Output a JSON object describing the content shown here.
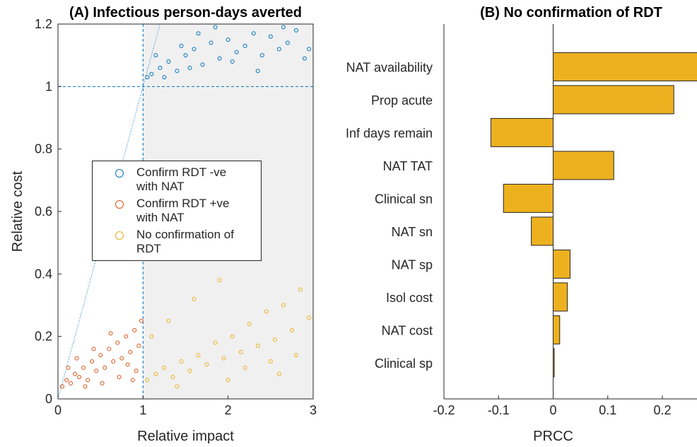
{
  "chart_data": [
    {
      "type": "scatter",
      "title": "(A) Infectious person-days averted",
      "x_label": "Relative impact",
      "y_label": "Relative cost",
      "xlim": [
        0,
        3
      ],
      "ylim": [
        0,
        1.2
      ],
      "xticks": [
        0,
        1,
        2,
        3
      ],
      "yticks": [
        0,
        0.2,
        0.4,
        0.6,
        0.8,
        1,
        1.2
      ],
      "series": [
        {
          "name": "Confirm RDT -ve\nwith NAT",
          "color": "#0072BD",
          "x": [
            1.1,
            1.2,
            1.3,
            1.4,
            1.5,
            1.6,
            1.7,
            1.8,
            1.9,
            2.0,
            2.1,
            2.2,
            2.3,
            2.4,
            2.5,
            2.6,
            2.7,
            2.8,
            2.9,
            1.25,
            1.45,
            1.65,
            1.85,
            2.05,
            1.15,
            2.35,
            2.65,
            2.95,
            1.05,
            1.55
          ],
          "y": [
            1.04,
            1.06,
            1.08,
            1.05,
            1.1,
            1.12,
            1.07,
            1.14,
            1.09,
            1.15,
            1.11,
            1.13,
            1.17,
            1.1,
            1.16,
            1.12,
            1.14,
            1.18,
            1.09,
            1.03,
            1.13,
            1.17,
            1.19,
            1.08,
            1.1,
            1.05,
            1.19,
            1.12,
            1.03,
            1.06
          ]
        },
        {
          "name": "Confirm RDT +ve\nwith NAT",
          "color": "#D95319",
          "x": [
            0.05,
            0.1,
            0.15,
            0.2,
            0.25,
            0.3,
            0.35,
            0.4,
            0.45,
            0.5,
            0.55,
            0.6,
            0.65,
            0.7,
            0.75,
            0.8,
            0.85,
            0.9,
            0.95,
            0.98,
            0.12,
            0.32,
            0.52,
            0.72,
            0.92,
            0.62,
            0.82,
            0.42,
            0.22,
            0.88
          ],
          "y": [
            0.04,
            0.06,
            0.05,
            0.08,
            0.07,
            0.1,
            0.06,
            0.12,
            0.09,
            0.14,
            0.1,
            0.16,
            0.12,
            0.18,
            0.13,
            0.2,
            0.15,
            0.22,
            0.17,
            0.25,
            0.1,
            0.04,
            0.05,
            0.07,
            0.09,
            0.21,
            0.11,
            0.16,
            0.13,
            0.06
          ]
        },
        {
          "name": "No confirmation of RDT",
          "color": "#EDB120",
          "x": [
            1.05,
            1.15,
            1.25,
            1.35,
            1.45,
            1.55,
            1.65,
            1.75,
            1.85,
            1.95,
            2.05,
            2.15,
            2.25,
            2.35,
            2.45,
            2.55,
            2.65,
            2.75,
            2.85,
            2.95,
            1.3,
            1.6,
            1.9,
            2.2,
            2.5,
            2.8,
            1.4,
            2.0,
            2.6,
            1.1
          ],
          "y": [
            0.06,
            0.08,
            0.1,
            0.07,
            0.12,
            0.09,
            0.14,
            0.11,
            0.18,
            0.13,
            0.2,
            0.15,
            0.24,
            0.17,
            0.28,
            0.19,
            0.3,
            0.22,
            0.35,
            0.26,
            0.25,
            0.32,
            0.38,
            0.1,
            0.12,
            0.14,
            0.04,
            0.06,
            0.08,
            0.2
          ]
        }
      ]
    },
    {
      "type": "barh",
      "title": "(B) No confirmation of RDT",
      "x_label": "PRCC",
      "color": "#EDB120",
      "xlim": [
        -0.2,
        0.26
      ],
      "xticks": [
        -0.2,
        -0.1,
        0,
        0.1,
        0.2
      ],
      "categories": [
        "NAT availability",
        "Prop acute",
        "Inf days remain",
        "NAT TAT",
        "Clinical sn",
        "NAT sn",
        "NAT sp",
        "Isol cost",
        "NAT cost",
        "Clinical sp"
      ],
      "values": [
        0.27,
        0.221,
        -0.114,
        0.111,
        -0.091,
        -0.04,
        0.031,
        0.026,
        0.012,
        0.002
      ]
    }
  ]
}
